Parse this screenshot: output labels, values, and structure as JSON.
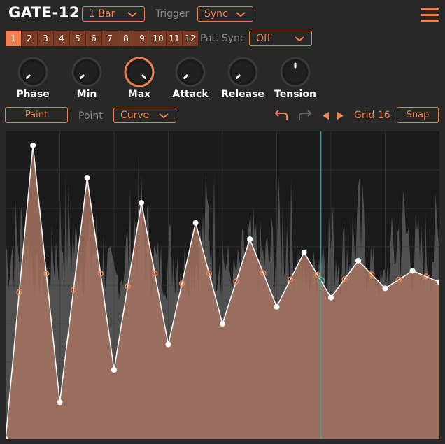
{
  "header": {
    "title": "GATE-12",
    "length_value": "1 Bar",
    "trigger_label": "Trigger",
    "trigger_value": "Sync"
  },
  "patterns": {
    "items": [
      "1",
      "2",
      "3",
      "4",
      "5",
      "6",
      "7",
      "8",
      "9",
      "10",
      "11",
      "12"
    ],
    "active_index": 0,
    "pat_sync_label": "Pat. Sync",
    "pat_sync_value": "Off"
  },
  "knobs": [
    {
      "label": "Phase",
      "value": 0.0,
      "highlight": false
    },
    {
      "label": "Min",
      "value": 0.0,
      "highlight": false
    },
    {
      "label": "Max",
      "value": 1.0,
      "highlight": true
    },
    {
      "label": "Attack",
      "value": 0.0,
      "highlight": false
    },
    {
      "label": "Release",
      "value": 0.0,
      "highlight": false
    },
    {
      "label": "Tension",
      "value": 0.5,
      "highlight": false
    }
  ],
  "toolbar": {
    "paint_label": "Paint",
    "point_label": "Point",
    "point_value": "Curve",
    "grid_label": "Grid 16",
    "snap_label": "Snap"
  },
  "colors": {
    "accent": "#f08050",
    "pattern_inactive": "#7a3c24",
    "curve_fill": "#a87462",
    "waveform": "#5a5a5a",
    "playhead": "#4fa8a0"
  },
  "envelope": {
    "points": [
      [
        0.0,
        0.0
      ],
      [
        0.063,
        0.955
      ],
      [
        0.125,
        0.12
      ],
      [
        0.188,
        0.85
      ],
      [
        0.25,
        0.225
      ],
      [
        0.313,
        0.768
      ],
      [
        0.375,
        0.308
      ],
      [
        0.438,
        0.703
      ],
      [
        0.5,
        0.375
      ],
      [
        0.563,
        0.65
      ],
      [
        0.625,
        0.43
      ],
      [
        0.688,
        0.607
      ],
      [
        0.75,
        0.46
      ],
      [
        0.813,
        0.58
      ],
      [
        0.875,
        0.49
      ],
      [
        0.938,
        0.547
      ],
      [
        1.0,
        0.51
      ]
    ],
    "playhead": 0.727
  }
}
